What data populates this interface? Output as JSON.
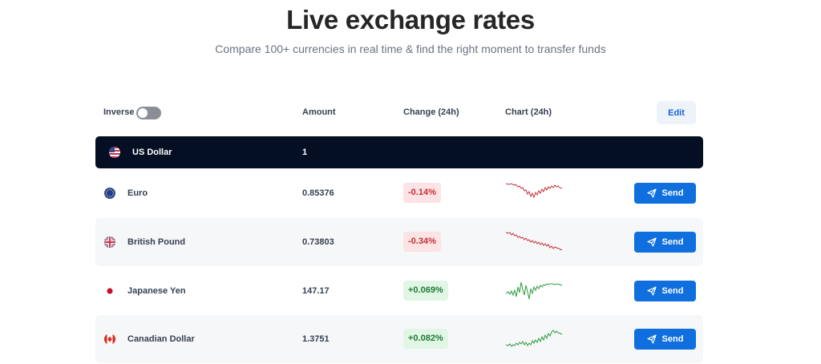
{
  "header": {
    "title": "Live exchange rates",
    "subtitle": "Compare 100+ currencies in real time & find the right moment to transfer funds"
  },
  "table": {
    "inverse_label": "Inverse",
    "inverse_on": false,
    "amount_header": "Amount",
    "change_header": "Change (24h)",
    "chart_header": "Chart (24h)",
    "edit_label": "Edit",
    "send_label": "Send",
    "base": {
      "name": "US Dollar",
      "amount": "1",
      "flag": "us-flag-icon"
    },
    "rows": [
      {
        "name": "Euro",
        "amount": "0.85376",
        "change": "-0.14%",
        "trend": "down",
        "flag": "eu-flag-icon"
      },
      {
        "name": "British Pound",
        "amount": "0.73803",
        "change": "-0.34%",
        "trend": "down",
        "flag": "uk-flag-icon"
      },
      {
        "name": "Japanese Yen",
        "amount": "147.17",
        "change": "+0.069%",
        "trend": "up",
        "flag": "japan-flag-icon"
      },
      {
        "name": "Canadian Dollar",
        "amount": "1.3751",
        "change": "+0.082%",
        "trend": "up",
        "flag": "canada-flag-icon"
      }
    ]
  },
  "colors": {
    "base_row": "#050f24",
    "send_button": "#0f6fde",
    "negative": "#c2303a",
    "positive": "#2f9a3f"
  }
}
